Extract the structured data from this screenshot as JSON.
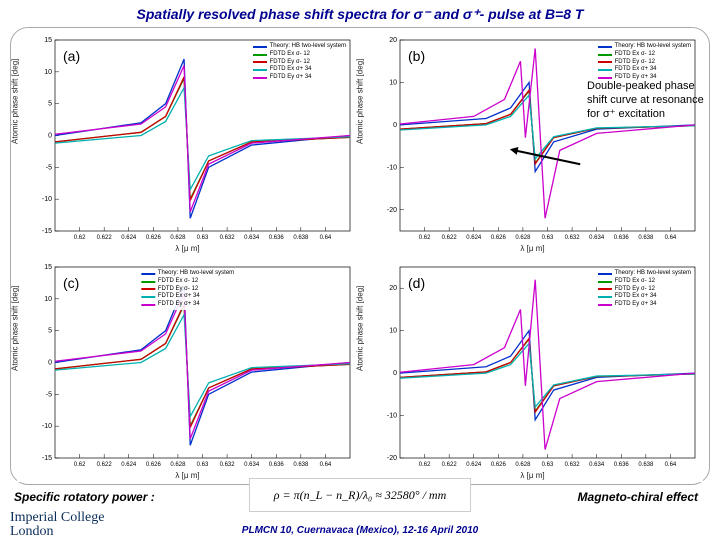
{
  "title_prefix": "Spatially resolved phase shift spectra for ",
  "title_suffix": "- pulse at B=8 T",
  "sigma_minus": "σ⁻",
  "sigma_plus": "σ⁺",
  "and": " and ",
  "annotation": "Double-peaked phase shift curve at resonance for σ⁺ excitation",
  "rotatory": "Specific rotatory power :",
  "magneto": "Magneto-chiral effect",
  "formula": "ρ = π(n_L − n_R)/λ₀ ≈ 32580° / mm",
  "logo1": "Imperial College",
  "logo2": "London",
  "conf": "PLMCN 10, Cuernavaca (Mexico), 12-16 April 2010",
  "ylabel": "Atomic phase shift [deg]",
  "xlabel": "λ [μ m]",
  "legend_items": [
    {
      "label": "Theory: HB two-level system",
      "color": "#0030cc"
    },
    {
      "label": "FDTD Ex σ- 12",
      "color": "#009900"
    },
    {
      "label": "FDTD Ey σ- 12",
      "color": "#cc0000"
    },
    {
      "label": "FDTD Ex σ+ 34",
      "color": "#00b0b0"
    },
    {
      "label": "FDTD Ey σ+ 34",
      "color": "#cc00cc"
    }
  ],
  "panels": [
    {
      "id": "a",
      "label": "(a)",
      "ymin": -15,
      "ymax": 15,
      "legend_pos": "tr"
    },
    {
      "id": "b",
      "label": "(b)",
      "ymin": -25,
      "ymax": 20,
      "legend_pos": "tr"
    },
    {
      "id": "c",
      "label": "(c)",
      "ymin": -15,
      "ymax": 15,
      "legend_pos": "tc"
    },
    {
      "id": "d",
      "label": "(d)",
      "ymin": -20,
      "ymax": 25,
      "legend_pos": "tr"
    }
  ],
  "xmin": 0.618,
  "xmax": 0.642,
  "xticks": [
    0.62,
    0.622,
    0.624,
    0.626,
    0.628,
    0.63,
    0.632,
    0.634,
    0.636,
    0.638,
    0.64
  ],
  "series": {
    "a": [
      {
        "color": "#0030cc",
        "pts": [
          [
            0.618,
            0
          ],
          [
            0.625,
            2
          ],
          [
            0.627,
            5
          ],
          [
            0.6285,
            12
          ],
          [
            0.629,
            -13
          ],
          [
            0.6305,
            -5
          ],
          [
            0.634,
            -1.5
          ],
          [
            0.642,
            0
          ]
        ]
      },
      {
        "color": "#009900",
        "pts": [
          [
            0.618,
            -1
          ],
          [
            0.625,
            0.5
          ],
          [
            0.627,
            3
          ],
          [
            0.6285,
            9
          ],
          [
            0.629,
            -10
          ],
          [
            0.6305,
            -4
          ],
          [
            0.634,
            -1
          ],
          [
            0.642,
            -0.3
          ]
        ]
      },
      {
        "color": "#cc0000",
        "pts": [
          [
            0.618,
            -1
          ],
          [
            0.625,
            0.5
          ],
          [
            0.627,
            3
          ],
          [
            0.6285,
            9.2
          ],
          [
            0.629,
            -10.2
          ],
          [
            0.6305,
            -4
          ],
          [
            0.634,
            -1
          ],
          [
            0.642,
            -0.3
          ]
        ]
      },
      {
        "color": "#00b0b0",
        "pts": [
          [
            0.618,
            -1.2
          ],
          [
            0.625,
            0
          ],
          [
            0.627,
            2.2
          ],
          [
            0.6285,
            7.5
          ],
          [
            0.629,
            -8.5
          ],
          [
            0.6305,
            -3.2
          ],
          [
            0.634,
            -0.8
          ],
          [
            0.642,
            -0.2
          ]
        ]
      },
      {
        "color": "#cc00cc",
        "pts": [
          [
            0.618,
            0.2
          ],
          [
            0.625,
            1.8
          ],
          [
            0.627,
            4.5
          ],
          [
            0.6285,
            11
          ],
          [
            0.629,
            -12
          ],
          [
            0.6305,
            -4.5
          ],
          [
            0.634,
            -1.2
          ],
          [
            0.642,
            0
          ]
        ]
      }
    ],
    "b": [
      {
        "color": "#0030cc",
        "pts": [
          [
            0.618,
            0
          ],
          [
            0.625,
            1.5
          ],
          [
            0.627,
            4
          ],
          [
            0.6285,
            10
          ],
          [
            0.629,
            -11
          ],
          [
            0.6305,
            -4
          ],
          [
            0.634,
            -1
          ],
          [
            0.642,
            0
          ]
        ]
      },
      {
        "color": "#009900",
        "pts": [
          [
            0.618,
            -1
          ],
          [
            0.625,
            0.3
          ],
          [
            0.627,
            2.5
          ],
          [
            0.6285,
            8
          ],
          [
            0.629,
            -9
          ],
          [
            0.6305,
            -3
          ],
          [
            0.634,
            -0.8
          ],
          [
            0.642,
            -0.2
          ]
        ]
      },
      {
        "color": "#cc0000",
        "pts": [
          [
            0.618,
            -1
          ],
          [
            0.625,
            0.3
          ],
          [
            0.627,
            2.5
          ],
          [
            0.6285,
            8.2
          ],
          [
            0.629,
            -9.2
          ],
          [
            0.6305,
            -3
          ],
          [
            0.634,
            -0.8
          ],
          [
            0.642,
            -0.2
          ]
        ]
      },
      {
        "color": "#00b0b0",
        "pts": [
          [
            0.618,
            -1.2
          ],
          [
            0.625,
            0
          ],
          [
            0.627,
            2
          ],
          [
            0.6285,
            7
          ],
          [
            0.629,
            -8
          ],
          [
            0.6305,
            -2.8
          ],
          [
            0.634,
            -0.7
          ],
          [
            0.642,
            -0.2
          ]
        ]
      },
      {
        "color": "#cc00cc",
        "pts": [
          [
            0.618,
            0.2
          ],
          [
            0.624,
            2
          ],
          [
            0.6265,
            6
          ],
          [
            0.6278,
            15
          ],
          [
            0.6282,
            -3
          ],
          [
            0.629,
            18
          ],
          [
            0.6298,
            -22
          ],
          [
            0.631,
            -6
          ],
          [
            0.634,
            -2
          ],
          [
            0.642,
            0
          ]
        ]
      }
    ],
    "c": [
      {
        "color": "#0030cc",
        "pts": [
          [
            0.618,
            0
          ],
          [
            0.625,
            2
          ],
          [
            0.627,
            5
          ],
          [
            0.6285,
            12
          ],
          [
            0.629,
            -13
          ],
          [
            0.6305,
            -5
          ],
          [
            0.634,
            -1.5
          ],
          [
            0.642,
            0
          ]
        ]
      },
      {
        "color": "#009900",
        "pts": [
          [
            0.618,
            -1
          ],
          [
            0.625,
            0.5
          ],
          [
            0.627,
            3
          ],
          [
            0.6285,
            9
          ],
          [
            0.629,
            -10
          ],
          [
            0.6305,
            -4
          ],
          [
            0.634,
            -1
          ],
          [
            0.642,
            -0.3
          ]
        ]
      },
      {
        "color": "#cc0000",
        "pts": [
          [
            0.618,
            -1
          ],
          [
            0.625,
            0.5
          ],
          [
            0.627,
            3
          ],
          [
            0.6285,
            9.2
          ],
          [
            0.629,
            -10.2
          ],
          [
            0.6305,
            -4
          ],
          [
            0.634,
            -1
          ],
          [
            0.642,
            -0.3
          ]
        ]
      },
      {
        "color": "#00b0b0",
        "pts": [
          [
            0.618,
            -1.2
          ],
          [
            0.625,
            0
          ],
          [
            0.627,
            2.2
          ],
          [
            0.6285,
            7.5
          ],
          [
            0.629,
            -8.5
          ],
          [
            0.6305,
            -3.2
          ],
          [
            0.634,
            -0.8
          ],
          [
            0.642,
            -0.2
          ]
        ]
      },
      {
        "color": "#cc00cc",
        "pts": [
          [
            0.618,
            0.2
          ],
          [
            0.625,
            1.8
          ],
          [
            0.627,
            4.5
          ],
          [
            0.6285,
            11
          ],
          [
            0.629,
            -12
          ],
          [
            0.6305,
            -4.5
          ],
          [
            0.634,
            -1.2
          ],
          [
            0.642,
            0
          ]
        ]
      }
    ],
    "d": [
      {
        "color": "#0030cc",
        "pts": [
          [
            0.618,
            0
          ],
          [
            0.625,
            1.5
          ],
          [
            0.627,
            4
          ],
          [
            0.6285,
            10
          ],
          [
            0.629,
            -11
          ],
          [
            0.6305,
            -4
          ],
          [
            0.634,
            -1
          ],
          [
            0.642,
            0
          ]
        ]
      },
      {
        "color": "#009900",
        "pts": [
          [
            0.618,
            -1
          ],
          [
            0.625,
            0.3
          ],
          [
            0.627,
            2.5
          ],
          [
            0.6285,
            8
          ],
          [
            0.629,
            -9
          ],
          [
            0.6305,
            -3
          ],
          [
            0.634,
            -0.8
          ],
          [
            0.642,
            -0.2
          ]
        ]
      },
      {
        "color": "#cc0000",
        "pts": [
          [
            0.618,
            -1
          ],
          [
            0.625,
            0.3
          ],
          [
            0.627,
            2.5
          ],
          [
            0.6285,
            8.2
          ],
          [
            0.629,
            -9.2
          ],
          [
            0.6305,
            -3
          ],
          [
            0.634,
            -0.8
          ],
          [
            0.642,
            -0.2
          ]
        ]
      },
      {
        "color": "#00b0b0",
        "pts": [
          [
            0.618,
            -1.2
          ],
          [
            0.625,
            0
          ],
          [
            0.627,
            2
          ],
          [
            0.6285,
            7
          ],
          [
            0.629,
            -8
          ],
          [
            0.6305,
            -2.8
          ],
          [
            0.634,
            -0.7
          ],
          [
            0.642,
            -0.2
          ]
        ]
      },
      {
        "color": "#cc00cc",
        "pts": [
          [
            0.618,
            0.2
          ],
          [
            0.624,
            2
          ],
          [
            0.6265,
            6
          ],
          [
            0.6278,
            15
          ],
          [
            0.6282,
            -3
          ],
          [
            0.629,
            22
          ],
          [
            0.6298,
            -18
          ],
          [
            0.631,
            -6
          ],
          [
            0.634,
            -2
          ],
          [
            0.642,
            0
          ]
        ]
      }
    ]
  }
}
